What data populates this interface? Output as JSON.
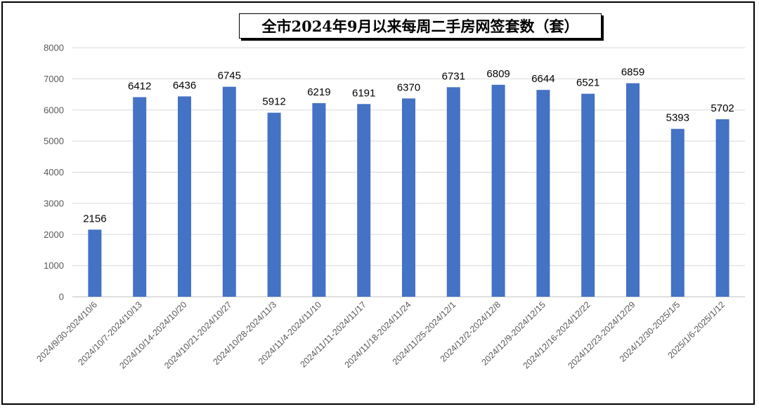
{
  "chart_data": {
    "type": "bar",
    "title": "全市2024年9月以来每周二手房网签套数（套）",
    "categories": [
      "2024/9/30-2024/10/6",
      "2024/10/7-2024/10/13",
      "2024/10/14-2024/10/20",
      "2024/10/21-2024/10/27",
      "2024/10/28-2024/11/3",
      "2024/11/4-2024/11/10",
      "2024/11/11-2024/11/17",
      "2024/11/18-2024/11/24",
      "2024/11/25-2024/12/1",
      "2024/12/2-2024/12/8",
      "2024/12/9-2024/12/15",
      "2024/12/16-2024/12/22",
      "2024/12/23-2024/12/29",
      "2024/12/30-2025/1/5",
      "2025/1/6-2025/1/12"
    ],
    "values": [
      2156,
      6412,
      6436,
      6745,
      5912,
      6219,
      6191,
      6370,
      6731,
      6809,
      6644,
      6521,
      6859,
      5393,
      5702
    ],
    "ylim": [
      0,
      8000
    ],
    "yticks": [
      0,
      1000,
      2000,
      3000,
      4000,
      5000,
      6000,
      7000,
      8000
    ],
    "grid": true,
    "bar_color": "#4472C4",
    "data_labels": true
  }
}
